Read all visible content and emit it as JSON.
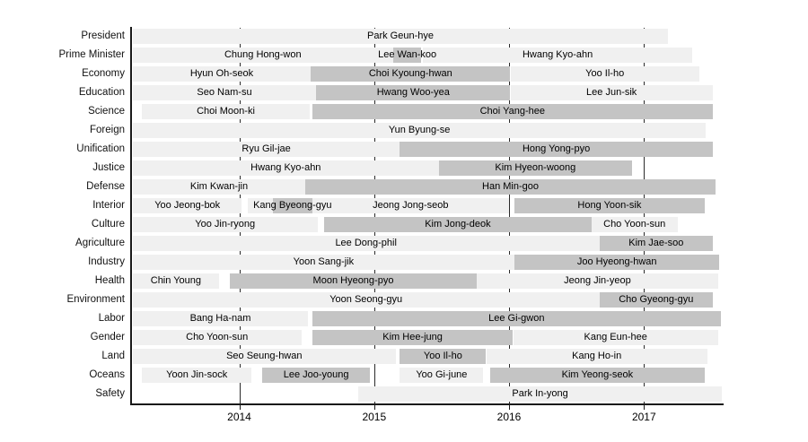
{
  "figure": {
    "background": "#ffffff",
    "bar_light_color": "#f0f0f0",
    "bar_dark_color": "#c4c4c4",
    "gridline_color": "#2a2a2a",
    "axis_color": "#1a1a1a"
  },
  "chart_data": {
    "type": "timeline",
    "x_domain": [
      2013.2,
      2017.59
    ],
    "x_ticks": [
      "2014",
      "2015",
      "2016",
      "2017"
    ],
    "grid": "vertical-year-lines",
    "legend": "none",
    "rows": [
      {
        "label": "President",
        "segments": [
          {
            "name": "Park Geun-hye",
            "start": 2013.21,
            "end": 2017.18,
            "shade": "light"
          }
        ]
      },
      {
        "label": "Prime Minister",
        "segments": [
          {
            "name": "Chung Hong-won",
            "start": 2013.21,
            "end": 2015.14,
            "shade": "light"
          },
          {
            "name": "Lee Wan-koo",
            "start": 2015.14,
            "end": 2015.35,
            "shade": "dark"
          },
          {
            "name": "Hwang Kyo-ahn",
            "start": 2015.36,
            "end": 2017.36,
            "shade": "light"
          }
        ]
      },
      {
        "label": "Economy",
        "segments": [
          {
            "name": "Hyun Oh-seok",
            "start": 2013.21,
            "end": 2014.53,
            "shade": "light"
          },
          {
            "name": "Choi Kyoung-hwan",
            "start": 2014.53,
            "end": 2016.01,
            "shade": "dark"
          },
          {
            "name": "Yoo Il-ho",
            "start": 2016.01,
            "end": 2017.41,
            "shade": "light"
          }
        ]
      },
      {
        "label": "Education",
        "segments": [
          {
            "name": "Seo Nam-su",
            "start": 2013.21,
            "end": 2014.57,
            "shade": "light"
          },
          {
            "name": "Hwang Woo-yea",
            "start": 2014.57,
            "end": 2016.01,
            "shade": "dark"
          },
          {
            "name": "Lee Jun-sik",
            "start": 2016.01,
            "end": 2017.51,
            "shade": "light"
          }
        ]
      },
      {
        "label": "Science",
        "segments": [
          {
            "name": "Choi Moon-ki",
            "start": 2013.28,
            "end": 2014.52,
            "shade": "light"
          },
          {
            "name": "Choi Yang-hee",
            "start": 2014.54,
            "end": 2017.51,
            "shade": "dark"
          }
        ]
      },
      {
        "label": "Foreign",
        "segments": [
          {
            "name": "Yun Byung-se",
            "start": 2013.21,
            "end": 2017.46,
            "shade": "light"
          }
        ]
      },
      {
        "label": "Unification",
        "segments": [
          {
            "name": "Ryu Gil-jae",
            "start": 2013.21,
            "end": 2015.19,
            "shade": "light"
          },
          {
            "name": "Hong Yong-pyo",
            "start": 2015.19,
            "end": 2017.51,
            "shade": "dark"
          }
        ]
      },
      {
        "label": "Justice",
        "segments": [
          {
            "name": "Hwang Kyo-ahn",
            "start": 2013.21,
            "end": 2015.48,
            "shade": "light"
          },
          {
            "name": "Kim Hyeon-woong",
            "start": 2015.48,
            "end": 2016.91,
            "shade": "dark"
          }
        ]
      },
      {
        "label": "Defense",
        "segments": [
          {
            "name": "Kim Kwan-jin",
            "start": 2013.21,
            "end": 2014.49,
            "shade": "light"
          },
          {
            "name": "Han Min-goo",
            "start": 2014.49,
            "end": 2017.53,
            "shade": "dark"
          }
        ]
      },
      {
        "label": "Interior",
        "segments": [
          {
            "name": "Yoo Jeong-bok",
            "start": 2013.21,
            "end": 2014.02,
            "shade": "light"
          },
          {
            "name": "",
            "start": 2014.06,
            "end": 2014.25,
            "shade": "light"
          },
          {
            "name": "Kang Byeong-gyu",
            "start": 2014.25,
            "end": 2014.54,
            "shade": "dark"
          },
          {
            "name": "Jeong Jong-seob",
            "start": 2014.54,
            "end": 2016.0,
            "shade": "light"
          },
          {
            "name": "Hong Yoon-sik",
            "start": 2016.04,
            "end": 2017.45,
            "shade": "dark"
          }
        ]
      },
      {
        "label": "Culture",
        "segments": [
          {
            "name": "Yoo Jin-ryong",
            "start": 2013.21,
            "end": 2014.58,
            "shade": "light"
          },
          {
            "name": "Kim Jong-deok",
            "start": 2014.63,
            "end": 2016.61,
            "shade": "dark"
          },
          {
            "name": "Cho Yoon-sun",
            "start": 2016.61,
            "end": 2017.25,
            "shade": "light"
          }
        ]
      },
      {
        "label": "Agriculture",
        "segments": [
          {
            "name": "Lee Dong-phil",
            "start": 2013.21,
            "end": 2016.67,
            "shade": "light"
          },
          {
            "name": "Kim Jae-soo",
            "start": 2016.67,
            "end": 2017.51,
            "shade": "dark"
          }
        ]
      },
      {
        "label": "Industry",
        "segments": [
          {
            "name": "Yoon Sang-jik",
            "start": 2013.21,
            "end": 2016.04,
            "shade": "light"
          },
          {
            "name": "Joo Hyeong-hwan",
            "start": 2016.04,
            "end": 2017.56,
            "shade": "dark"
          }
        ]
      },
      {
        "label": "Health",
        "segments": [
          {
            "name": "Chin Young",
            "start": 2013.21,
            "end": 2013.85,
            "shade": "light"
          },
          {
            "name": "Moon Hyeong-pyo",
            "start": 2013.93,
            "end": 2015.76,
            "shade": "dark"
          },
          {
            "name": "Jeong Jin-yeop",
            "start": 2015.76,
            "end": 2017.55,
            "shade": "light"
          }
        ]
      },
      {
        "label": "Environment",
        "segments": [
          {
            "name": "Yoon Seong-gyu",
            "start": 2013.21,
            "end": 2016.67,
            "shade": "light"
          },
          {
            "name": "Cho Gyeong-gyu",
            "start": 2016.67,
            "end": 2017.51,
            "shade": "dark"
          }
        ]
      },
      {
        "label": "Labor",
        "segments": [
          {
            "name": "Bang Ha-nam",
            "start": 2013.21,
            "end": 2014.51,
            "shade": "light"
          },
          {
            "name": "Lee Gi-gwon",
            "start": 2014.54,
            "end": 2017.57,
            "shade": "dark"
          }
        ]
      },
      {
        "label": "Gender",
        "segments": [
          {
            "name": "Cho Yoon-sun",
            "start": 2013.21,
            "end": 2014.46,
            "shade": "light"
          },
          {
            "name": "Kim Hee-jung",
            "start": 2014.54,
            "end": 2016.03,
            "shade": "dark"
          },
          {
            "name": "Kang Eun-hee",
            "start": 2016.03,
            "end": 2017.55,
            "shade": "light"
          }
        ]
      },
      {
        "label": "Land",
        "segments": [
          {
            "name": "Seo Seung-hwan",
            "start": 2013.21,
            "end": 2015.16,
            "shade": "light"
          },
          {
            "name": "Yoo Il-ho",
            "start": 2015.19,
            "end": 2015.83,
            "shade": "dark"
          },
          {
            "name": "Kang Ho-in",
            "start": 2015.83,
            "end": 2017.47,
            "shade": "light"
          }
        ]
      },
      {
        "label": "Oceans",
        "segments": [
          {
            "name": "Yoon Jin-sock",
            "start": 2013.28,
            "end": 2014.09,
            "shade": "light"
          },
          {
            "name": "Lee Joo-young",
            "start": 2014.17,
            "end": 2014.97,
            "shade": "dark"
          },
          {
            "name": "Yoo Gi-june",
            "start": 2015.19,
            "end": 2015.81,
            "shade": "light"
          },
          {
            "name": "Kim Yeong-seok",
            "start": 2015.86,
            "end": 2017.45,
            "shade": "dark"
          }
        ]
      },
      {
        "label": "Safety",
        "segments": [
          {
            "name": "Park In-yong",
            "start": 2014.88,
            "end": 2017.58,
            "shade": "light"
          }
        ]
      }
    ]
  }
}
